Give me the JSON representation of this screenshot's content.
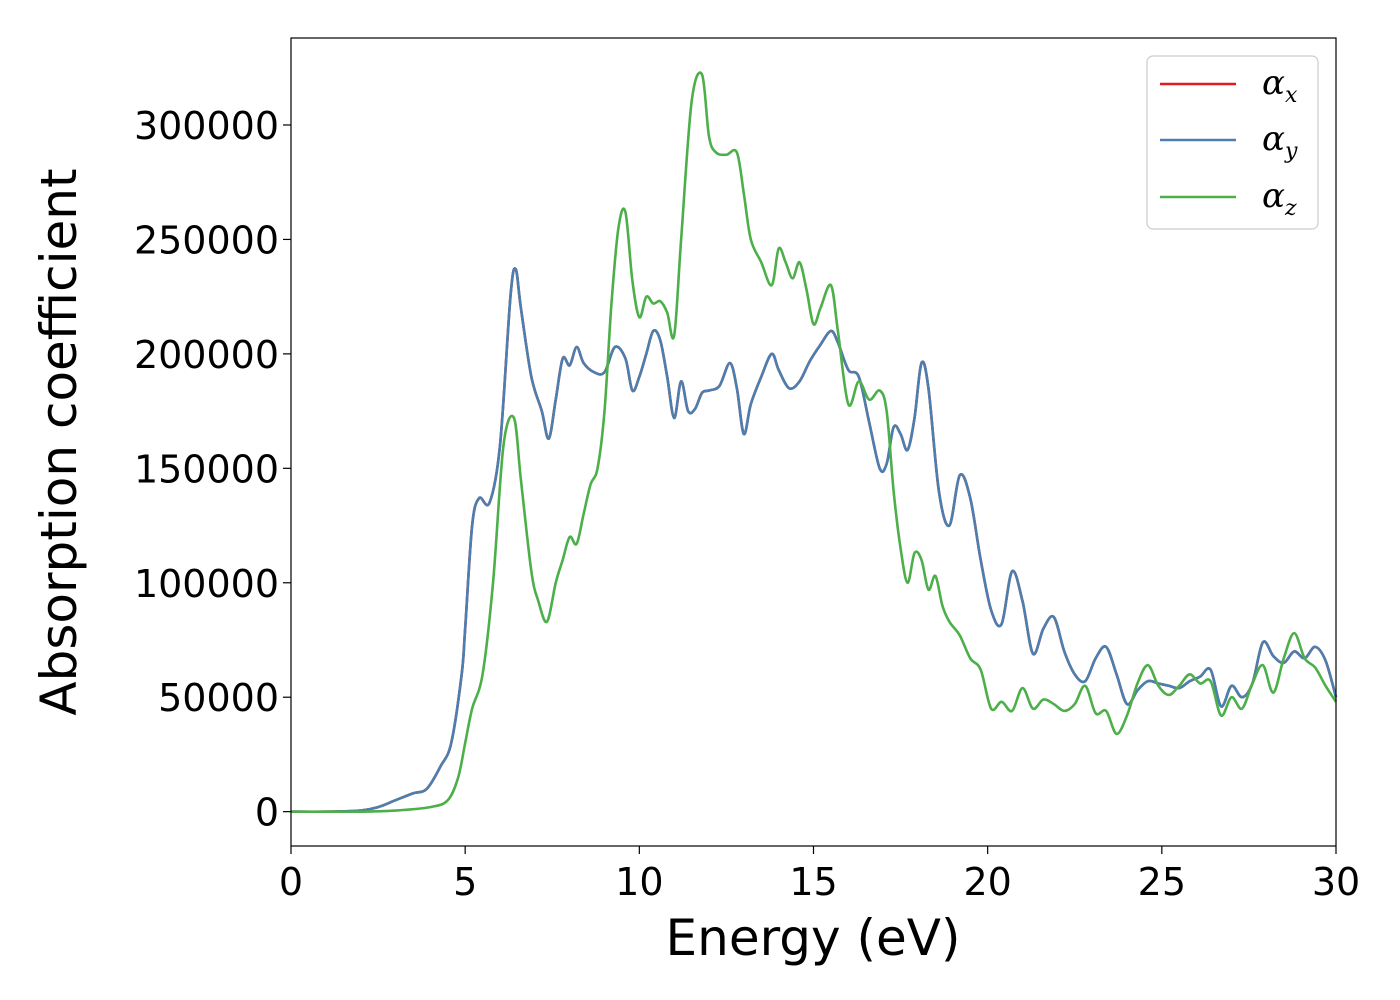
{
  "chart_data": {
    "type": "line",
    "title": "",
    "xlabel": "Energy (eV)",
    "ylabel": "Absorption coefficient",
    "xlim": [
      0,
      30
    ],
    "ylim": [
      -15000,
      338000
    ],
    "xticks": [
      0,
      5,
      10,
      15,
      20,
      25,
      30
    ],
    "xtick_labels": [
      "0",
      "5",
      "10",
      "15",
      "20",
      "25",
      "30"
    ],
    "yticks": [
      0,
      50000,
      100000,
      150000,
      200000,
      250000,
      300000
    ],
    "ytick_labels": [
      "0",
      "50000",
      "100000",
      "150000",
      "200000",
      "250000",
      "300000"
    ],
    "grid": false,
    "legend_position": "top-right",
    "series": [
      {
        "name": "αx",
        "legend_symbol": "α",
        "legend_sub": "x",
        "color": "#e41a1c",
        "x": [
          0,
          1,
          2,
          2.5,
          3,
          3.5,
          3.9,
          4.3,
          4.6,
          4.9,
          5.0,
          5.2,
          5.4,
          5.7,
          6.0,
          6.3,
          6.45,
          6.6,
          6.9,
          7.2,
          7.4,
          7.6,
          7.8,
          8.0,
          8.2,
          8.4,
          8.7,
          9.0,
          9.3,
          9.6,
          9.8,
          10.0,
          10.2,
          10.4,
          10.6,
          10.8,
          11.0,
          11.2,
          11.4,
          11.6,
          11.8,
          12.0,
          12.3,
          12.6,
          12.8,
          13.0,
          13.2,
          13.5,
          13.8,
          14.0,
          14.3,
          14.6,
          14.9,
          15.2,
          15.5,
          15.7,
          16.0,
          16.3,
          16.6,
          16.9,
          17.1,
          17.3,
          17.5,
          17.7,
          17.9,
          18.1,
          18.3,
          18.6,
          18.9,
          19.2,
          19.5,
          19.8,
          20.1,
          20.4,
          20.7,
          21.0,
          21.3,
          21.6,
          21.9,
          22.2,
          22.5,
          22.8,
          23.1,
          23.4,
          23.7,
          24.0,
          24.3,
          24.6,
          24.9,
          25.2,
          25.5,
          25.8,
          26.1,
          26.4,
          26.7,
          27.0,
          27.3,
          27.6,
          27.9,
          28.2,
          28.5,
          28.8,
          29.1,
          29.4,
          29.7,
          30.0
        ],
        "y": [
          0,
          0,
          500,
          2000,
          5000,
          8000,
          10000,
          20000,
          30000,
          60000,
          80000,
          125000,
          137000,
          135000,
          160000,
          225000,
          237000,
          220000,
          190000,
          175000,
          163000,
          180000,
          198000,
          195000,
          203000,
          196000,
          192000,
          192000,
          203000,
          198000,
          184000,
          190000,
          200000,
          210000,
          206000,
          190000,
          172000,
          188000,
          175000,
          176000,
          183000,
          184000,
          186000,
          196000,
          185000,
          165000,
          178000,
          190000,
          200000,
          193000,
          185000,
          188000,
          197000,
          204000,
          210000,
          205000,
          193000,
          190000,
          170000,
          150000,
          152000,
          168000,
          165000,
          158000,
          172000,
          196000,
          185000,
          140000,
          125000,
          147000,
          137000,
          110000,
          88000,
          82000,
          105000,
          92000,
          69000,
          80000,
          85000,
          70000,
          60000,
          57000,
          67000,
          72000,
          60000,
          47000,
          53000,
          57000,
          56000,
          55000,
          54000,
          57000,
          59000,
          62000,
          46000,
          55000,
          50000,
          56000,
          74000,
          68000,
          65000,
          70000,
          67000,
          72000,
          66000,
          50000
        ]
      },
      {
        "name": "αy",
        "legend_symbol": "α",
        "legend_sub": "y",
        "color": "#4a7fb0",
        "x": [
          0,
          1,
          2,
          2.5,
          3,
          3.5,
          3.9,
          4.3,
          4.6,
          4.9,
          5.0,
          5.2,
          5.4,
          5.7,
          6.0,
          6.3,
          6.45,
          6.6,
          6.9,
          7.2,
          7.4,
          7.6,
          7.8,
          8.0,
          8.2,
          8.4,
          8.7,
          9.0,
          9.3,
          9.6,
          9.8,
          10.0,
          10.2,
          10.4,
          10.6,
          10.8,
          11.0,
          11.2,
          11.4,
          11.6,
          11.8,
          12.0,
          12.3,
          12.6,
          12.8,
          13.0,
          13.2,
          13.5,
          13.8,
          14.0,
          14.3,
          14.6,
          14.9,
          15.2,
          15.5,
          15.7,
          16.0,
          16.3,
          16.6,
          16.9,
          17.1,
          17.3,
          17.5,
          17.7,
          17.9,
          18.1,
          18.3,
          18.6,
          18.9,
          19.2,
          19.5,
          19.8,
          20.1,
          20.4,
          20.7,
          21.0,
          21.3,
          21.6,
          21.9,
          22.2,
          22.5,
          22.8,
          23.1,
          23.4,
          23.7,
          24.0,
          24.3,
          24.6,
          24.9,
          25.2,
          25.5,
          25.8,
          26.1,
          26.4,
          26.7,
          27.0,
          27.3,
          27.6,
          27.9,
          28.2,
          28.5,
          28.8,
          29.1,
          29.4,
          29.7,
          30.0
        ],
        "y": [
          0,
          0,
          500,
          2000,
          5000,
          8000,
          10000,
          20000,
          30000,
          60000,
          80000,
          125000,
          137000,
          135000,
          160000,
          225000,
          237000,
          220000,
          190000,
          175000,
          163000,
          180000,
          198000,
          195000,
          203000,
          196000,
          192000,
          192000,
          203000,
          198000,
          184000,
          190000,
          200000,
          210000,
          206000,
          190000,
          172000,
          188000,
          175000,
          176000,
          183000,
          184000,
          186000,
          196000,
          185000,
          165000,
          178000,
          190000,
          200000,
          193000,
          185000,
          188000,
          197000,
          204000,
          210000,
          205000,
          193000,
          190000,
          170000,
          150000,
          152000,
          168000,
          165000,
          158000,
          172000,
          196000,
          185000,
          140000,
          125000,
          147000,
          137000,
          110000,
          88000,
          82000,
          105000,
          92000,
          69000,
          80000,
          85000,
          70000,
          60000,
          57000,
          67000,
          72000,
          60000,
          47000,
          53000,
          57000,
          56000,
          55000,
          54000,
          57000,
          59000,
          62000,
          46000,
          55000,
          50000,
          56000,
          74000,
          68000,
          65000,
          70000,
          67000,
          72000,
          66000,
          50000
        ]
      },
      {
        "name": "αz",
        "legend_symbol": "α",
        "legend_sub": "z",
        "color": "#4daf4a",
        "x": [
          0,
          1,
          2,
          3,
          4,
          4.5,
          4.8,
          5.0,
          5.2,
          5.5,
          5.8,
          6.1,
          6.4,
          6.6,
          6.9,
          7.1,
          7.35,
          7.6,
          7.8,
          8.0,
          8.2,
          8.4,
          8.6,
          8.8,
          9.0,
          9.2,
          9.4,
          9.6,
          9.8,
          10.0,
          10.2,
          10.4,
          10.6,
          10.8,
          11.0,
          11.2,
          11.5,
          11.8,
          12.0,
          12.2,
          12.5,
          12.8,
          13.0,
          13.2,
          13.5,
          13.8,
          14.0,
          14.2,
          14.4,
          14.6,
          14.8,
          15.0,
          15.2,
          15.5,
          15.7,
          16.0,
          16.3,
          16.6,
          16.9,
          17.1,
          17.3,
          17.5,
          17.7,
          17.9,
          18.1,
          18.3,
          18.5,
          18.7,
          18.9,
          19.2,
          19.5,
          19.8,
          20.1,
          20.4,
          20.7,
          21.0,
          21.3,
          21.6,
          21.9,
          22.2,
          22.5,
          22.8,
          23.1,
          23.4,
          23.7,
          24.0,
          24.3,
          24.6,
          24.9,
          25.2,
          25.5,
          25.8,
          26.1,
          26.4,
          26.7,
          27.0,
          27.3,
          27.6,
          27.9,
          28.2,
          28.5,
          28.8,
          29.1,
          29.4,
          29.7,
          30.0
        ],
        "y": [
          0,
          0,
          0,
          500,
          2000,
          5000,
          15000,
          30000,
          45000,
          60000,
          100000,
          160000,
          172000,
          145000,
          105000,
          92000,
          83000,
          100000,
          110000,
          120000,
          117000,
          130000,
          143000,
          150000,
          175000,
          222000,
          255000,
          262000,
          232000,
          216000,
          225000,
          222000,
          223000,
          218000,
          208000,
          250000,
          310000,
          322000,
          295000,
          288000,
          287000,
          288000,
          270000,
          250000,
          240000,
          230000,
          246000,
          240000,
          233000,
          240000,
          228000,
          213000,
          220000,
          230000,
          210000,
          178000,
          188000,
          180000,
          184000,
          175000,
          140000,
          115000,
          100000,
          113000,
          110000,
          97000,
          103000,
          90000,
          83000,
          77000,
          67000,
          62000,
          45000,
          48000,
          44000,
          54000,
          45000,
          49000,
          47000,
          44000,
          47000,
          55000,
          43000,
          44000,
          34000,
          42000,
          56000,
          64000,
          55000,
          51000,
          55000,
          60000,
          56000,
          57000,
          42000,
          50000,
          45000,
          56000,
          64000,
          52000,
          67000,
          78000,
          67000,
          63000,
          55000,
          48000
        ]
      }
    ]
  }
}
